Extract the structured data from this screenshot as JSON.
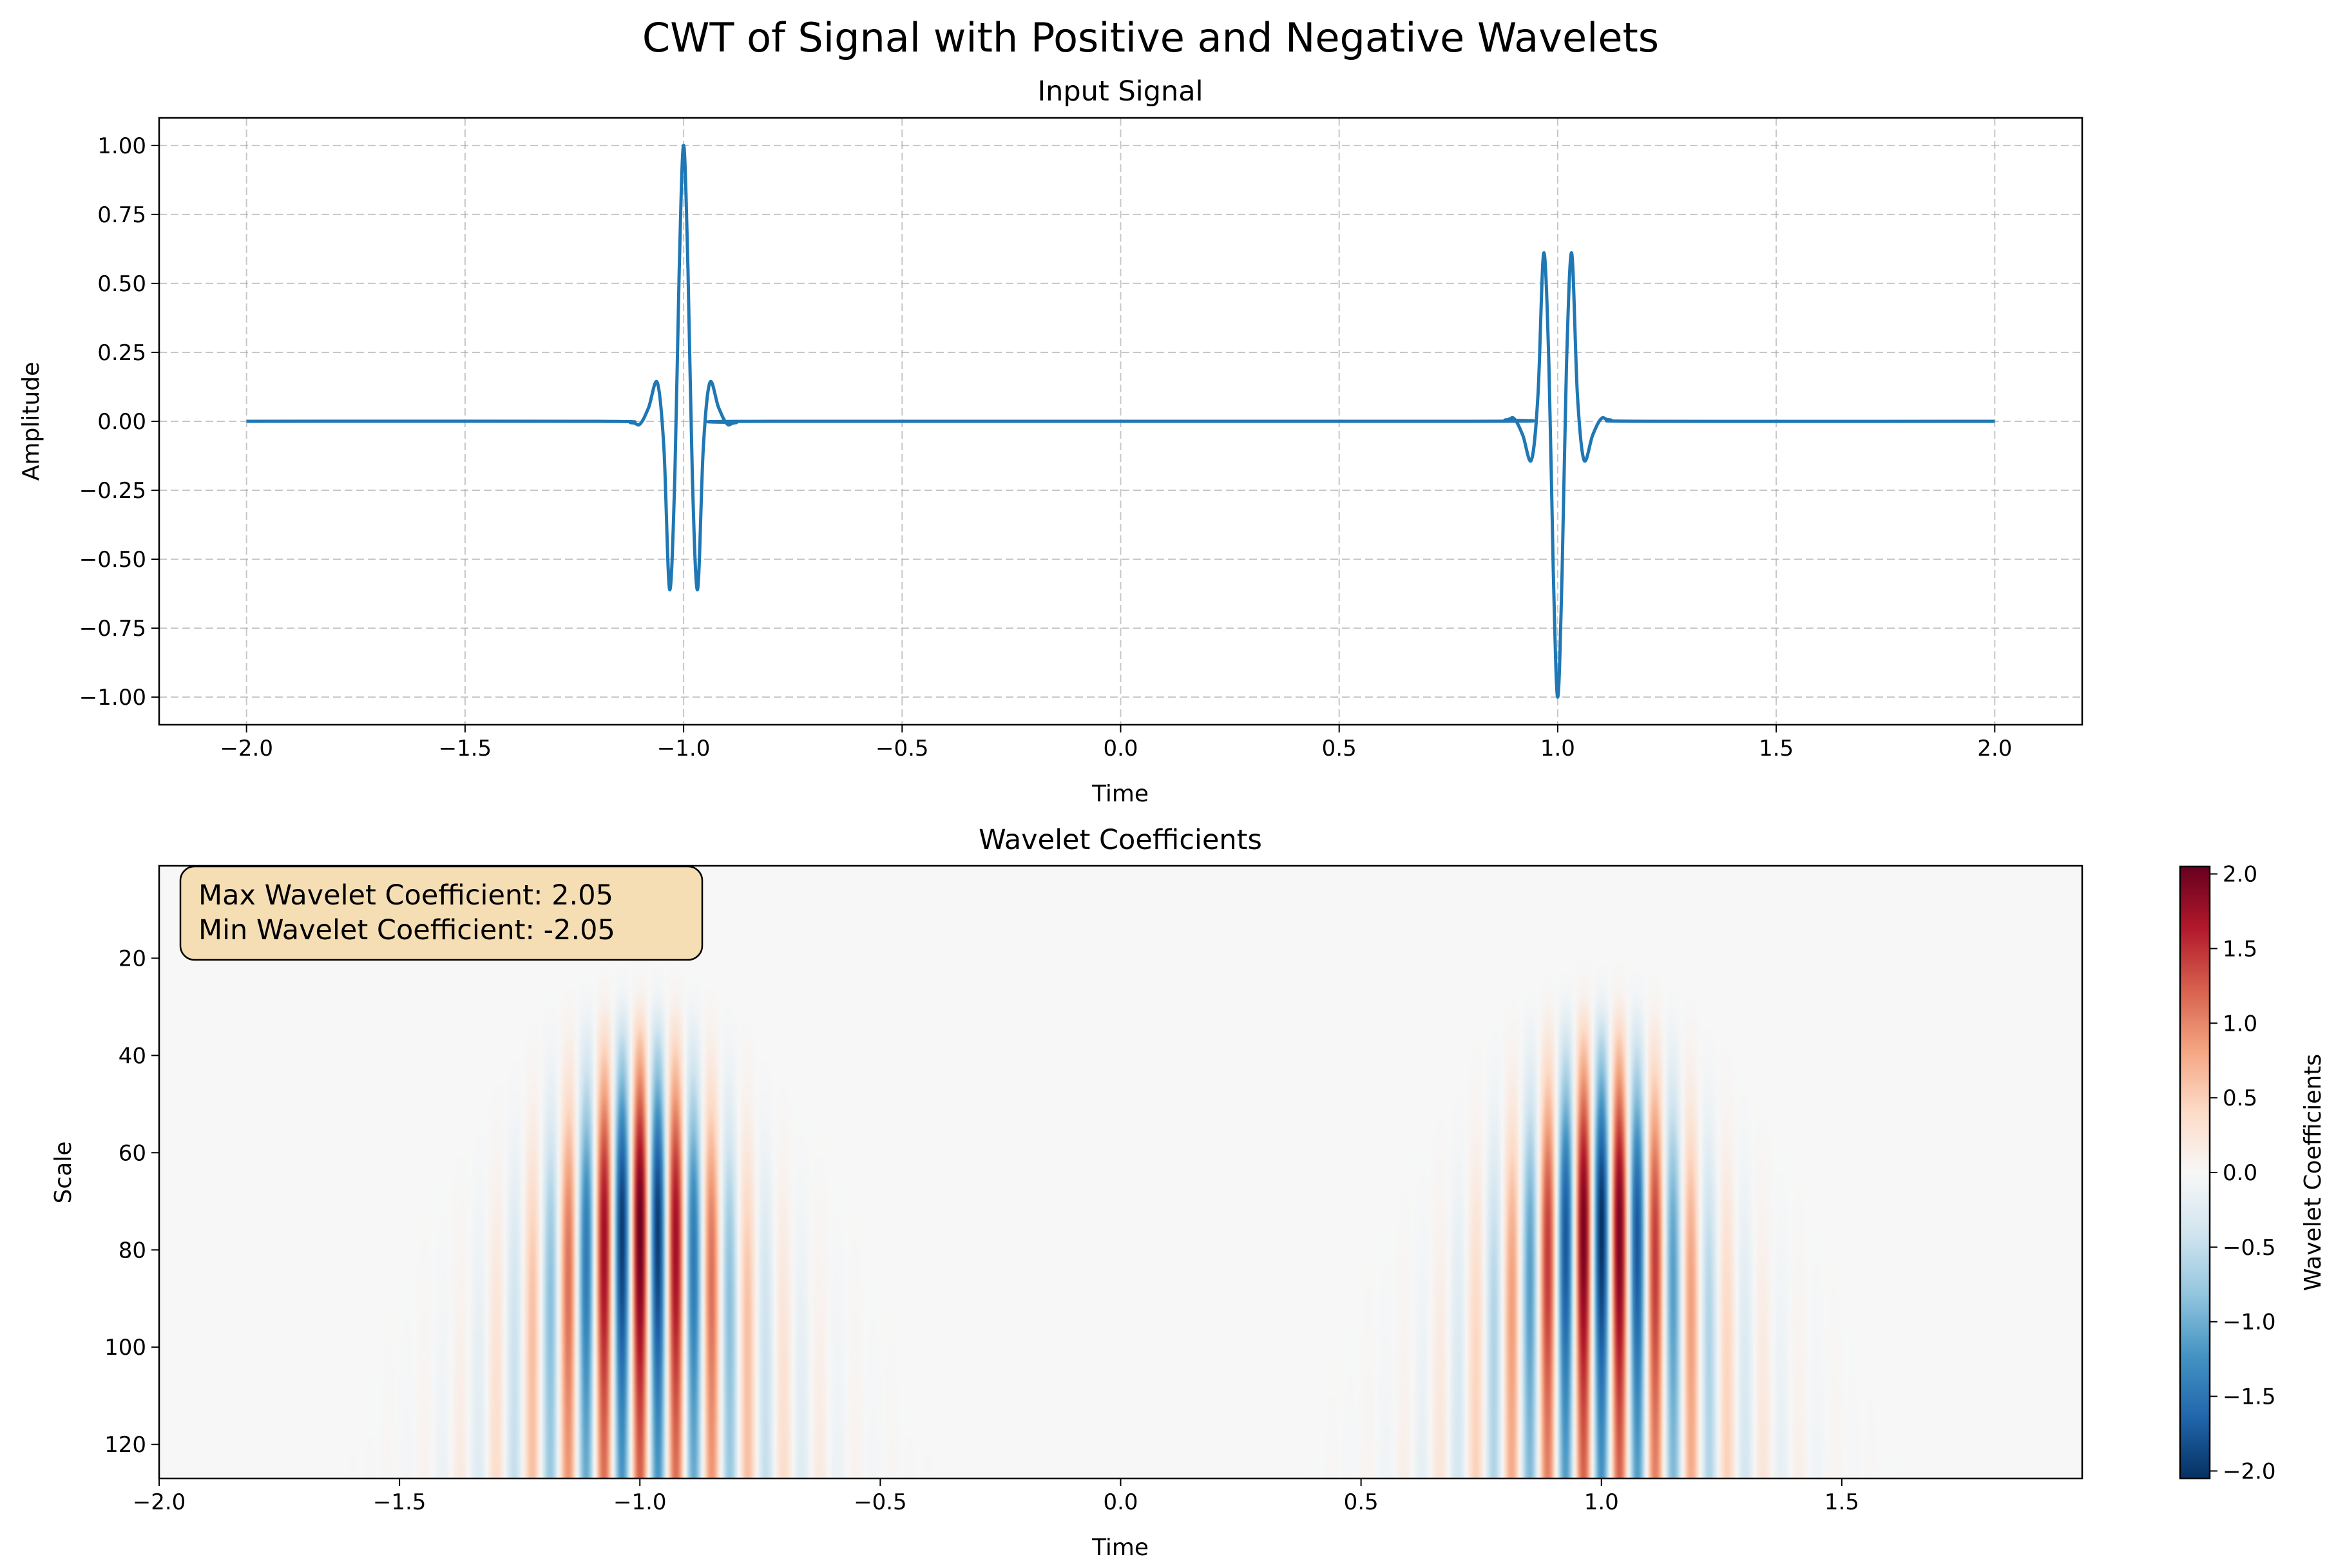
{
  "figure": {
    "title": "CWT of Signal with Positive and Negative Wavelets"
  },
  "chart_data": [
    {
      "type": "line",
      "title": "Input Signal",
      "xlabel": "Time",
      "ylabel": "Amplitude",
      "xlim": [
        -2.2,
        2.2
      ],
      "ylim": [
        -1.1,
        1.1
      ],
      "grid": true,
      "x_ticks": [
        -2.0,
        -1.5,
        -1.0,
        -0.5,
        0.0,
        0.5,
        1.0,
        1.5,
        2.0
      ],
      "x_tick_labels": [
        "−2.0",
        "−1.5",
        "−1.0",
        "−0.5",
        "0.0",
        "0.5",
        "1.0",
        "1.5",
        "2.0"
      ],
      "y_ticks": [
        1.0,
        0.75,
        0.5,
        0.25,
        0.0,
        -0.25,
        -0.5,
        -0.75,
        -1.0
      ],
      "y_tick_labels": [
        "1.00",
        "0.75",
        "0.50",
        "0.25",
        "0.00",
        "−0.25",
        "−0.50",
        "−0.75",
        "−1.00"
      ],
      "color": "#1f77b4",
      "series": [
        {
          "x": [
            -2.0,
            -1.2,
            -1.12,
            -1.1,
            -1.08,
            -1.06,
            -1.045,
            -1.032,
            -1.02,
            -1.01,
            -1.0,
            -0.99,
            -0.98,
            -0.968,
            -0.955,
            -0.94,
            -0.92,
            -0.9,
            -0.88,
            -0.8,
            0.8,
            0.88,
            0.9,
            0.92,
            0.94,
            0.955,
            0.968,
            0.98,
            0.99,
            1.0,
            1.01,
            1.02,
            1.032,
            1.045,
            1.06,
            1.08,
            1.1,
            1.12,
            1.2,
            2.0
          ],
          "y": [
            0.0,
            0.0,
            -0.005,
            -0.01,
            0.05,
            0.14,
            -0.1,
            -0.61,
            -0.2,
            0.55,
            1.0,
            0.55,
            -0.2,
            -0.61,
            -0.1,
            0.14,
            0.05,
            -0.01,
            -0.005,
            0.0,
            0.0,
            0.005,
            0.01,
            -0.05,
            -0.14,
            0.1,
            0.61,
            0.2,
            -0.55,
            -1.0,
            -0.55,
            0.2,
            0.61,
            0.1,
            -0.14,
            -0.05,
            0.01,
            0.005,
            0.0,
            0.0
          ]
        }
      ]
    },
    {
      "type": "heatmap",
      "title": "Wavelet Coefficients",
      "xlabel": "Time",
      "ylabel": "Scale",
      "xlim": [
        -2.0,
        2.0
      ],
      "ylim": [
        127,
        1
      ],
      "x_ticks": [
        -2.0,
        -1.5,
        -1.0,
        -0.5,
        0.0,
        0.5,
        1.0,
        1.5
      ],
      "x_tick_labels": [
        "−2.0",
        "−1.5",
        "−1.0",
        "−0.5",
        "0.0",
        "0.5",
        "1.0",
        "1.5"
      ],
      "y_ticks": [
        20,
        40,
        60,
        80,
        100,
        120
      ],
      "y_tick_labels": [
        "20",
        "40",
        "60",
        "80",
        "100",
        "120"
      ],
      "colormap": "RdBu_r",
      "colorbar": {
        "label": "Wavelet Coefficients",
        "range": [
          -2.05,
          2.05
        ],
        "ticks": [
          2.0,
          1.5,
          1.0,
          0.5,
          0.0,
          -0.5,
          -1.0,
          -1.5,
          -2.0
        ],
        "tick_labels": [
          "2.0",
          "1.5",
          "1.0",
          "0.5",
          "0.0",
          "−0.5",
          "−1.0",
          "−1.5",
          "−2.0"
        ]
      },
      "value_range": [
        -2.05,
        2.05
      ],
      "events": [
        {
          "time": -1.0,
          "sign": 1,
          "peak_scale": 75
        },
        {
          "time": 1.0,
          "sign": -1,
          "peak_scale": 75
        }
      ],
      "annotation": {
        "line1": "Max Wavelet Coefficient: 2.05",
        "line2": "Min Wavelet Coefficient: -2.05",
        "background": "#f5deb3",
        "placement": "top-left"
      }
    }
  ]
}
